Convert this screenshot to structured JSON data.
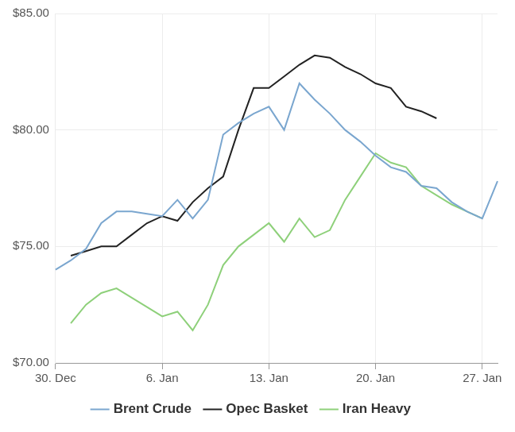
{
  "chart_data": {
    "type": "line",
    "categories": [
      "30. Dec",
      null,
      null,
      null,
      null,
      null,
      null,
      "6. Jan",
      null,
      null,
      null,
      null,
      null,
      null,
      "13. Jan",
      null,
      null,
      null,
      null,
      null,
      null,
      "20. Jan",
      null,
      null,
      null,
      null,
      null,
      null,
      "27. Jan",
      null
    ],
    "series": [
      {
        "name": "Brent Crude",
        "color": "#7aa6cf",
        "values": [
          74.0,
          74.4,
          74.9,
          76.0,
          76.5,
          76.5,
          76.4,
          76.3,
          77.0,
          76.2,
          77.0,
          79.8,
          80.3,
          80.7,
          81.0,
          80.0,
          82.0,
          81.3,
          80.7,
          80.0,
          79.5,
          78.9,
          78.4,
          78.2,
          77.6,
          77.5,
          76.9,
          76.5,
          76.2,
          77.8
        ]
      },
      {
        "name": "Opec Basket",
        "color": "#222222",
        "values": [
          null,
          74.6,
          74.8,
          75.0,
          75.0,
          75.5,
          76.0,
          76.3,
          76.1,
          76.9,
          77.5,
          78.0,
          80.0,
          81.8,
          81.8,
          82.3,
          82.8,
          83.2,
          83.1,
          82.7,
          82.4,
          82.0,
          81.8,
          81.0,
          80.8,
          80.5,
          null,
          null,
          null,
          null
        ]
      },
      {
        "name": "Iran Heavy",
        "color": "#8ed07a",
        "values": [
          null,
          71.7,
          72.5,
          73.0,
          73.2,
          72.8,
          72.4,
          72.0,
          72.2,
          71.4,
          72.5,
          74.2,
          75.0,
          75.5,
          76.0,
          75.2,
          76.2,
          75.4,
          75.7,
          77.0,
          78.0,
          79.0,
          78.6,
          78.4,
          77.6,
          77.2,
          76.8,
          76.5,
          76.2,
          null
        ]
      }
    ],
    "ylim": [
      70,
      85
    ],
    "yticks": [
      {
        "value": 70,
        "label": "$70.00"
      },
      {
        "value": 75,
        "label": "$75.00"
      },
      {
        "value": 80,
        "label": "$80.00"
      },
      {
        "value": 85,
        "label": "$85.00"
      }
    ],
    "grid": true,
    "legend": "bottom",
    "line_style": "solid"
  }
}
